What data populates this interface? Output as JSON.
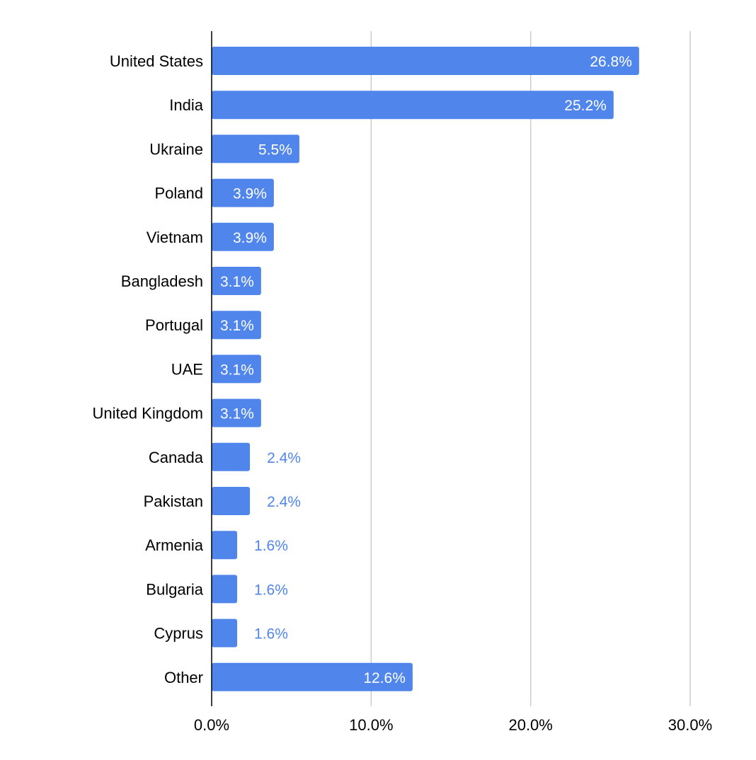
{
  "chart_data": {
    "type": "bar",
    "orientation": "horizontal",
    "title": "",
    "xlabel": "",
    "ylabel": "",
    "categories": [
      "United States",
      "India",
      "Ukraine",
      "Poland",
      "Vietnam",
      "Bangladesh",
      "Portugal",
      "UAE",
      "United Kingdom",
      "Canada",
      "Pakistan",
      "Armenia",
      "Bulgaria",
      "Cyprus",
      "Other"
    ],
    "values": [
      26.8,
      25.2,
      5.5,
      3.9,
      3.9,
      3.1,
      3.1,
      3.1,
      3.1,
      2.4,
      2.4,
      1.6,
      1.6,
      1.6,
      12.6
    ],
    "data_labels": [
      "26.8%",
      "25.2%",
      "5.5%",
      "3.9%",
      "3.9%",
      "3.1%",
      "3.1%",
      "3.1%",
      "3.1%",
      "2.4%",
      "2.4%",
      "1.6%",
      "1.6%",
      "1.6%",
      "12.6%"
    ],
    "xlim": [
      0,
      30
    ],
    "x_ticks": [
      0,
      10,
      20,
      30
    ],
    "x_tick_labels": [
      "0.0%",
      "10.0%",
      "20.0%",
      "30.0%"
    ],
    "grid": "vertical",
    "legend": "none",
    "colors": {
      "bar": "#5086ec",
      "label_inside": "#ffffff",
      "label_outside": "#5086ec",
      "grid": "#cccccc",
      "axis": "#000000",
      "text": "#000000"
    }
  }
}
